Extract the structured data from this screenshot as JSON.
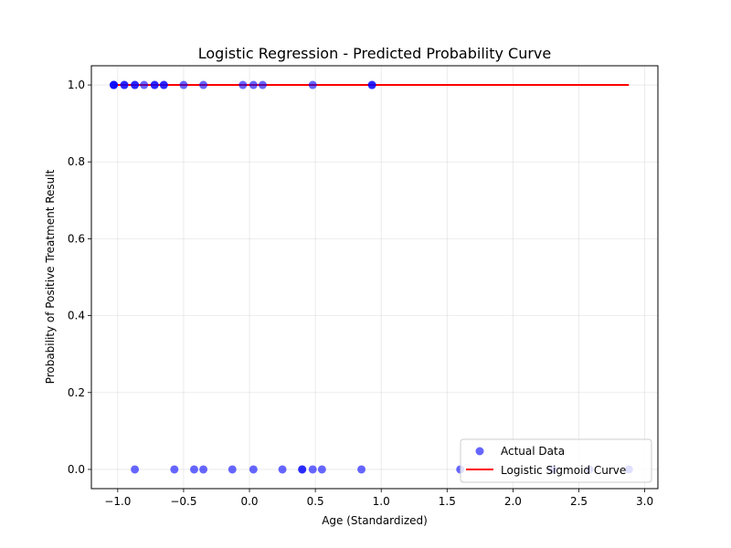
{
  "chart_data": {
    "type": "scatter",
    "title": "Logistic Regression - Predicted Probability Curve",
    "xlabel": "Age (Standardized)",
    "ylabel": "Probability of Positive Treatment Result",
    "xlim": [
      -1.2,
      3.1
    ],
    "ylim": [
      -0.05,
      1.05
    ],
    "xticks": [
      -1.0,
      -0.5,
      0.0,
      0.5,
      1.0,
      1.5,
      2.0,
      2.5,
      3.0
    ],
    "xtick_labels": [
      "−1.0",
      "−0.5",
      "0.0",
      "0.5",
      "1.0",
      "1.5",
      "2.0",
      "2.5",
      "3.0"
    ],
    "yticks": [
      0.0,
      0.2,
      0.4,
      0.6,
      0.8,
      1.0
    ],
    "ytick_labels": [
      "0.0",
      "0.2",
      "0.4",
      "0.6",
      "0.8",
      "1.0"
    ],
    "grid": true,
    "legend_position": "lower-right",
    "series": [
      {
        "name": "Actual Data",
        "kind": "scatter",
        "color": "#0000ff",
        "x": [
          -1.03,
          -1.03,
          -1.03,
          -0.95,
          -0.95,
          -0.87,
          -0.87,
          -0.8,
          -0.72,
          -0.72,
          -0.65,
          -0.65,
          -0.5,
          -0.35,
          -0.05,
          0.03,
          0.1,
          0.48,
          0.93,
          0.93,
          -0.87,
          -0.57,
          -0.42,
          -0.35,
          -0.13,
          0.03,
          0.25,
          0.4,
          0.4,
          0.48,
          0.55,
          0.85,
          1.6,
          2.3,
          2.58,
          2.88
        ],
        "y": [
          1,
          1,
          1,
          1,
          1,
          1,
          1,
          1,
          1,
          1,
          1,
          1,
          1,
          1,
          1,
          1,
          1,
          1,
          1,
          1,
          0,
          0,
          0,
          0,
          0,
          0,
          0,
          0,
          0,
          0,
          0,
          0,
          0,
          0,
          0,
          0
        ]
      },
      {
        "name": "Logistic Sigmoid Curve",
        "kind": "line",
        "color": "#ff0000",
        "x": [
          -1.03,
          -0.5,
          0.0,
          0.5,
          1.0,
          1.5,
          2.0,
          2.5,
          2.88
        ],
        "y": [
          1.0,
          1.0,
          1.0,
          1.0,
          1.0,
          1.0,
          1.0,
          1.0,
          1.0
        ]
      }
    ]
  }
}
